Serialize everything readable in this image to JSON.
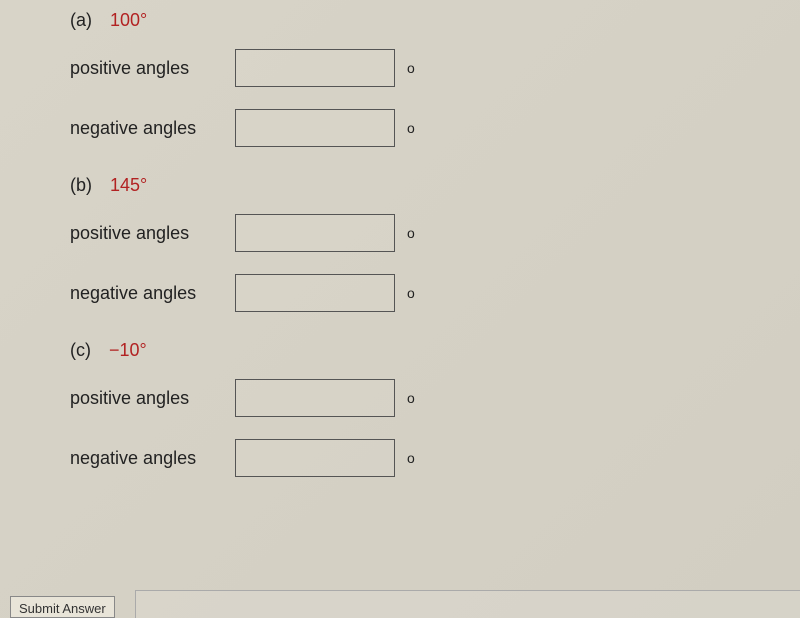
{
  "problems": [
    {
      "letter": "(a)",
      "angle": "100°",
      "rows": [
        {
          "label": "positive angles",
          "value": "",
          "symbol": "o"
        },
        {
          "label": "negative angles",
          "value": "",
          "symbol": "o"
        }
      ]
    },
    {
      "letter": "(b)",
      "angle": "145°",
      "rows": [
        {
          "label": "positive angles",
          "value": "",
          "symbol": "o"
        },
        {
          "label": "negative angles",
          "value": "",
          "symbol": "o"
        }
      ]
    },
    {
      "letter": "(c)",
      "angle": "−10°",
      "rows": [
        {
          "label": "positive angles",
          "value": "",
          "symbol": "o"
        },
        {
          "label": "negative angles",
          "value": "",
          "symbol": "o"
        }
      ]
    }
  ],
  "submit_label": "Submit Answer",
  "colors": {
    "angle_text": "#b22222",
    "body_text": "#222222",
    "background": "#d5d1c5",
    "input_border": "#555555"
  },
  "typography": {
    "font_family": "Verdana",
    "body_fontsize": 18,
    "symbol_fontsize": 14
  }
}
